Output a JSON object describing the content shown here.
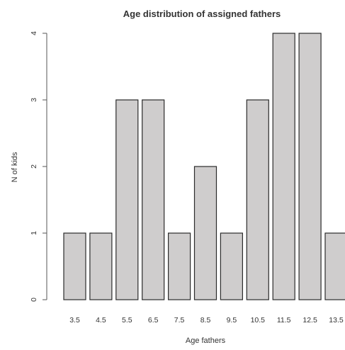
{
  "chart_data": {
    "type": "bar",
    "title": "Age distribution of assigned fathers",
    "xlabel": "Age fathers",
    "ylabel": "N of kids",
    "categories": [
      "3.5",
      "4.5",
      "5.5",
      "6.5",
      "7.5",
      "8.5",
      "9.5",
      "10.5",
      "11.5",
      "12.5",
      "13.5"
    ],
    "values": [
      1,
      1,
      3,
      3,
      1,
      2,
      1,
      3,
      4,
      4,
      1
    ],
    "ylim": [
      0,
      4
    ],
    "yticks": [
      "0",
      "1",
      "2",
      "3",
      "4"
    ],
    "grid": false,
    "colors": {
      "bar_fill": "#cfcdcd",
      "bar_stroke": "#2b2b2b",
      "axis": "#555555",
      "text": "#333333"
    }
  }
}
